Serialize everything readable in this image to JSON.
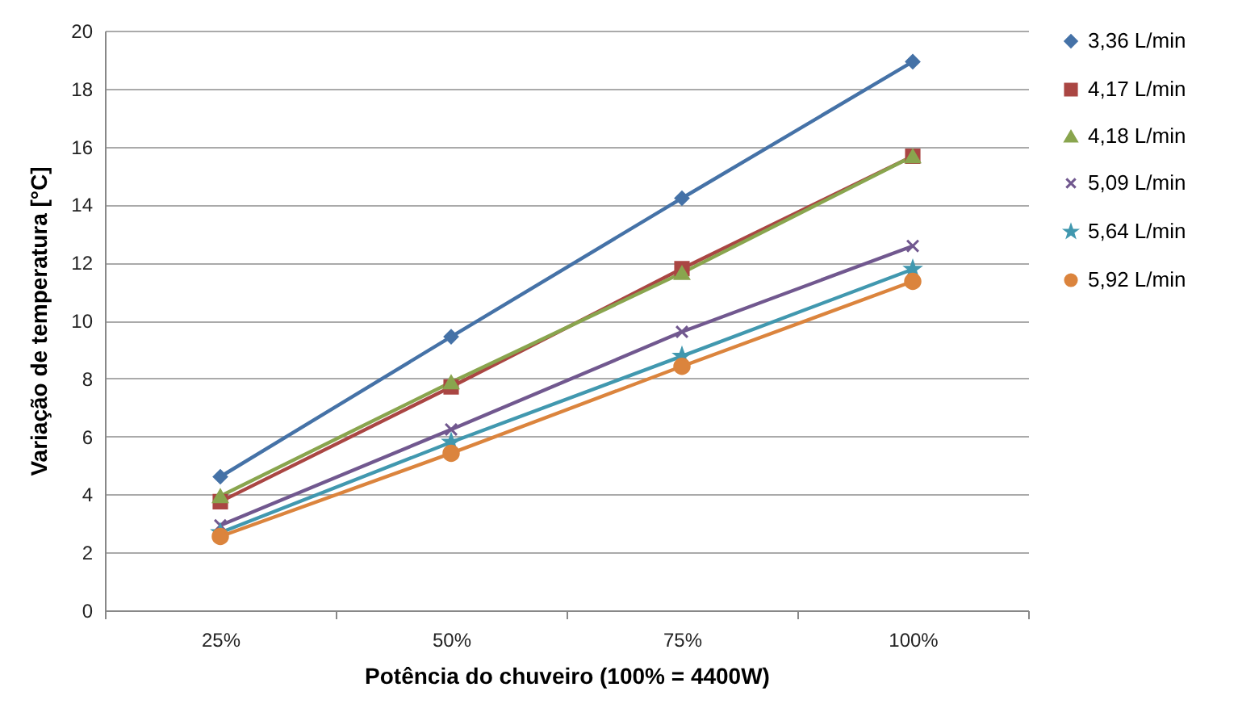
{
  "chart_data": {
    "type": "line",
    "xlabel": "Potência do chuveiro (100% = 4400W)",
    "ylabel": "Variação de temperatura [°C]",
    "categories": [
      "25%",
      "50%",
      "75%",
      "100%"
    ],
    "ylim": [
      0,
      20
    ],
    "yticks": [
      0,
      2,
      4,
      6,
      8,
      10,
      12,
      14,
      16,
      18,
      20
    ],
    "grid": "y",
    "legend": "right",
    "series": [
      {
        "name": "3,36 L/min",
        "color": "#4572a7",
        "marker": "diamond",
        "values": [
          4.61,
          9.44,
          14.22,
          18.93
        ]
      },
      {
        "name": "4,17 L/min",
        "color": "#aa4643",
        "marker": "square",
        "values": [
          3.75,
          7.71,
          11.79,
          15.67
        ]
      },
      {
        "name": "4,18 L/min",
        "color": "#89a54e",
        "marker": "triangle",
        "values": [
          3.94,
          7.87,
          11.64,
          15.67
        ]
      },
      {
        "name": "5,09 L/min",
        "color": "#71588f",
        "marker": "cross",
        "values": [
          2.93,
          6.24,
          9.61,
          12.57
        ]
      },
      {
        "name": "5,64 L/min",
        "color": "#4198af",
        "marker": "star",
        "values": [
          2.68,
          5.8,
          8.77,
          11.77
        ]
      },
      {
        "name": "5,92 L/min",
        "color": "#db843d",
        "marker": "circle",
        "values": [
          2.55,
          5.42,
          8.42,
          11.35
        ]
      }
    ]
  }
}
